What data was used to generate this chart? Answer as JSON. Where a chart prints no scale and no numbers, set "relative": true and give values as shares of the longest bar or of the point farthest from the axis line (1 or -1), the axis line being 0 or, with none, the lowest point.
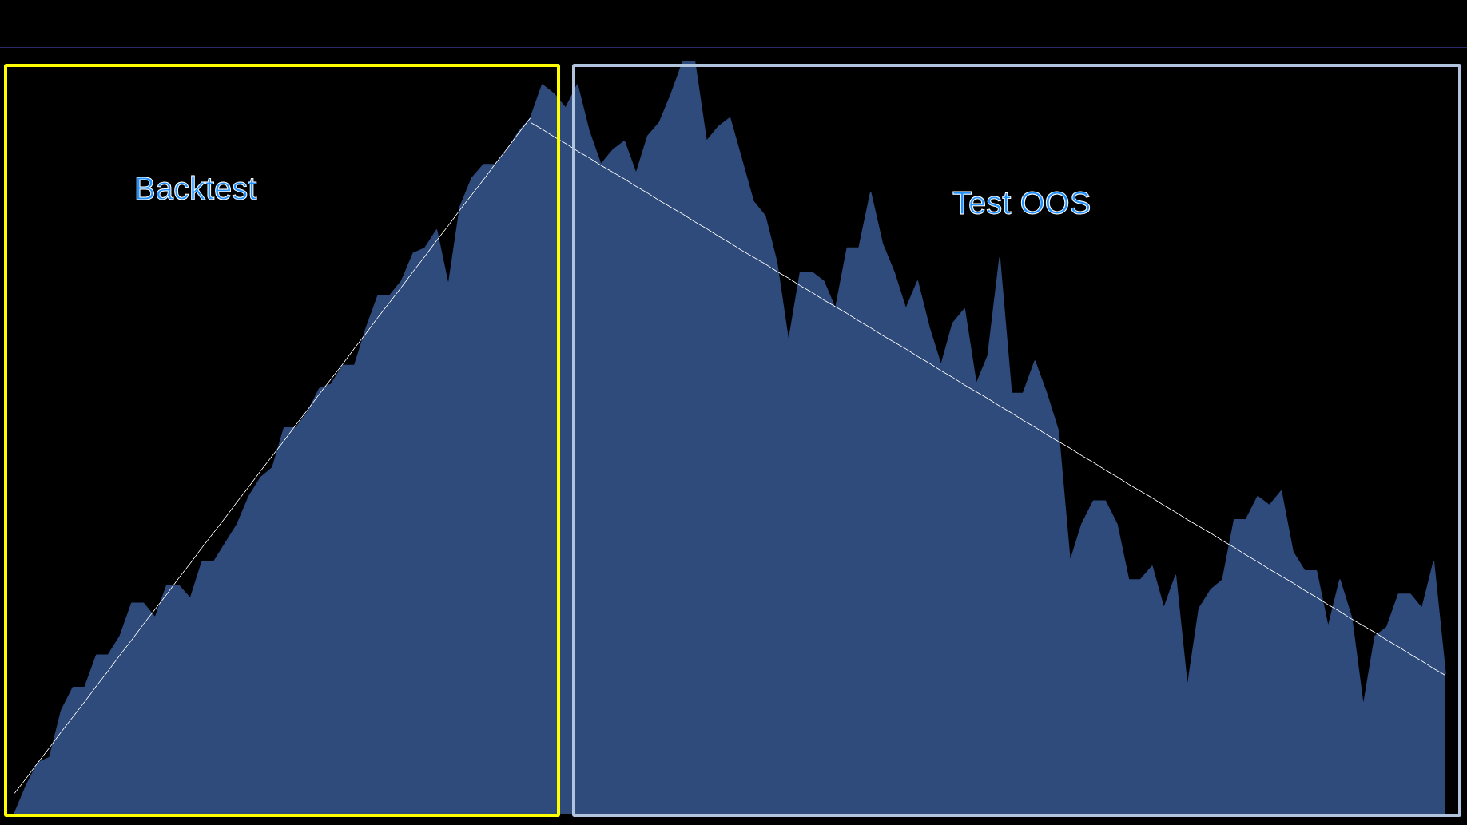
{
  "chart_data": {
    "type": "area",
    "relative": true,
    "grid": false,
    "marker": "none",
    "line_style": "solid",
    "categories": [
      null,
      null,
      null,
      null,
      null,
      null,
      null,
      null,
      null,
      null,
      null,
      null,
      null,
      null,
      null,
      null,
      null,
      null,
      null,
      null,
      null,
      null,
      null,
      null,
      null,
      null,
      null,
      null,
      null,
      null,
      null,
      null,
      null,
      null,
      null,
      null,
      null,
      null,
      null,
      null,
      null,
      null,
      null,
      null,
      null,
      null,
      null,
      null,
      null,
      null,
      null,
      null,
      null,
      null,
      null,
      null,
      null,
      null,
      null,
      null,
      null,
      null,
      null,
      null,
      null,
      null,
      null,
      null,
      null,
      null,
      null,
      null,
      null,
      null,
      null,
      null,
      null,
      null,
      null,
      null,
      null,
      null,
      null,
      null,
      null,
      null,
      null,
      null,
      null,
      null,
      null,
      null,
      null,
      null,
      null,
      null,
      null,
      null,
      null,
      null,
      null,
      null,
      null,
      null,
      null,
      null,
      null,
      null,
      null,
      null,
      null,
      null,
      null,
      null,
      null,
      null,
      null,
      null,
      null,
      null,
      null,
      null,
      null
    ],
    "series": [
      {
        "color": "#2f4b7c",
        "values": [
          0,
          0.037,
          0.068,
          0.075,
          0.137,
          0.168,
          0.168,
          0.211,
          0.211,
          0.236,
          0.28,
          0.28,
          0.261,
          0.304,
          0.304,
          0.286,
          0.335,
          0.335,
          0.36,
          0.385,
          0.422,
          0.447,
          0.46,
          0.513,
          0.513,
          0.534,
          0.565,
          0.571,
          0.596,
          0.596,
          0.646,
          0.689,
          0.689,
          0.708,
          0.745,
          0.752,
          0.776,
          0.702,
          0.807,
          0.845,
          0.863,
          0.863,
          0.882,
          0.907,
          0.925,
          0.969,
          0.957,
          0.938,
          0.969,
          0.907,
          0.863,
          0.882,
          0.894,
          0.851,
          0.901,
          0.919,
          0.957,
          1,
          1,
          0.894,
          0.913,
          0.925,
          0.87,
          0.814,
          0.795,
          0.733,
          0.627,
          0.72,
          0.72,
          0.708,
          0.671,
          0.752,
          0.752,
          0.826,
          0.758,
          0.72,
          0.671,
          0.708,
          0.646,
          0.596,
          0.652,
          0.671,
          0.571,
          0.609,
          0.739,
          0.559,
          0.559,
          0.602,
          0.559,
          0.509,
          0.335,
          0.385,
          0.416,
          0.416,
          0.385,
          0.311,
          0.311,
          0.329,
          0.273,
          0.317,
          0.168,
          0.273,
          0.298,
          0.311,
          0.391,
          0.391,
          0.422,
          0.41,
          0.429,
          0.348,
          0.323,
          0.323,
          0.248,
          0.311,
          0.261,
          0.143,
          0.236,
          0.248,
          0.292,
          0.292,
          0.273,
          0.335,
          0.186
        ]
      },
      {
        "type": "line",
        "color": "#ffffff",
        "values": [
          0.027,
          0.047,
          0.068,
          0.088,
          0.109,
          0.129,
          0.149,
          0.17,
          0.19,
          0.211,
          0.231,
          0.252,
          0.272,
          0.292,
          0.313,
          0.333,
          0.354,
          0.374,
          0.394,
          0.415,
          0.435,
          0.456,
          0.476,
          0.496,
          0.517,
          0.537,
          0.558,
          0.578,
          0.598,
          0.619,
          0.639,
          0.66,
          0.68,
          0.7,
          0.721,
          0.741,
          0.762,
          0.782,
          0.803,
          0.823,
          0.843,
          0.864,
          0.884,
          0.905,
          0.925,
          null,
          null,
          null,
          null,
          null,
          null,
          null,
          null,
          null,
          null,
          null,
          null,
          null,
          null,
          null,
          null,
          null,
          null,
          null,
          null,
          null,
          null,
          null,
          null,
          null,
          null,
          null,
          null,
          null,
          null,
          null,
          null,
          null,
          null,
          null,
          null,
          null,
          null,
          null,
          null,
          null,
          null,
          null,
          null,
          null,
          null,
          null,
          null,
          null,
          null,
          null,
          null,
          null,
          null,
          null,
          null,
          null,
          null,
          null,
          null,
          null,
          null,
          null,
          null,
          null,
          null,
          null,
          null,
          null,
          null,
          null,
          null,
          null,
          null,
          null,
          null,
          null,
          null
        ]
      },
      {
        "type": "line",
        "color": "#ffffff",
        "values": [
          null,
          null,
          null,
          null,
          null,
          null,
          null,
          null,
          null,
          null,
          null,
          null,
          null,
          null,
          null,
          null,
          null,
          null,
          null,
          null,
          null,
          null,
          null,
          null,
          null,
          null,
          null,
          null,
          null,
          null,
          null,
          null,
          null,
          null,
          null,
          null,
          null,
          null,
          null,
          null,
          null,
          null,
          null,
          null,
          0.919,
          0.91,
          0.9,
          0.891,
          0.881,
          0.872,
          0.862,
          0.853,
          0.844,
          0.834,
          0.825,
          0.815,
          0.806,
          0.797,
          0.787,
          0.778,
          0.768,
          0.759,
          0.749,
          0.74,
          0.731,
          0.721,
          0.712,
          0.702,
          0.693,
          0.683,
          0.674,
          0.665,
          0.655,
          0.646,
          0.636,
          0.627,
          0.618,
          0.608,
          0.599,
          0.589,
          0.58,
          0.57,
          0.561,
          0.552,
          0.542,
          0.533,
          0.523,
          0.514,
          0.504,
          0.495,
          0.486,
          0.476,
          0.467,
          0.457,
          0.448,
          0.438,
          0.429,
          0.42,
          0.41,
          0.401,
          0.391,
          0.382,
          0.373,
          0.363,
          0.354,
          0.344,
          0.335,
          0.325,
          0.316,
          0.307,
          0.297,
          0.288,
          0.278,
          0.269,
          0.259,
          0.25,
          0.241,
          0.231,
          0.222,
          0.212,
          0.203,
          0.193,
          0.184
        ]
      }
    ],
    "annotations": [
      "Backtest",
      "Test OOS"
    ]
  }
}
